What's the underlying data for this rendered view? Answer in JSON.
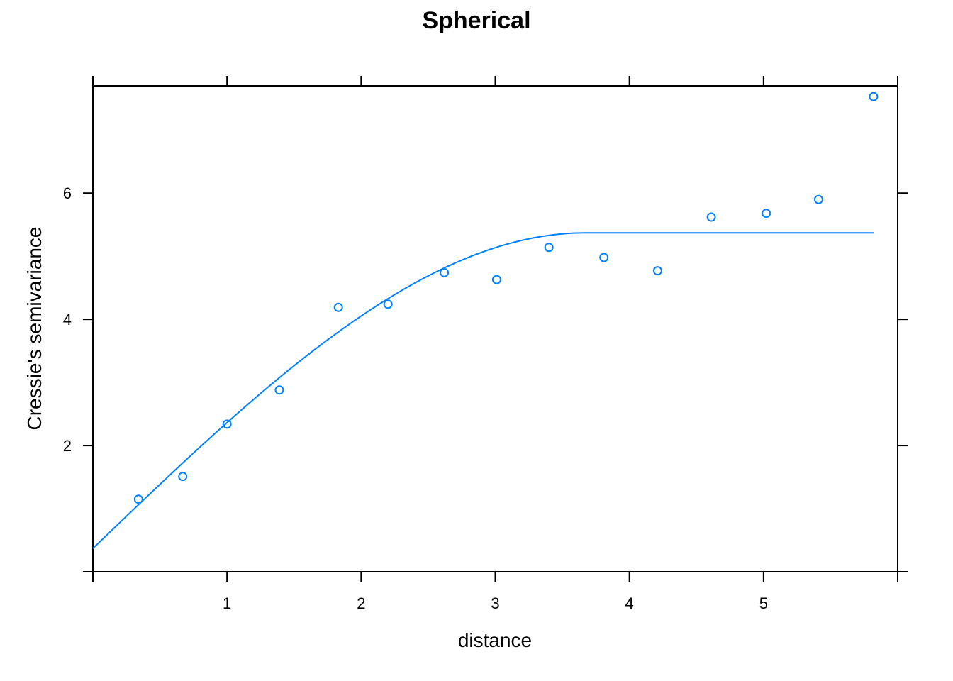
{
  "chart_data": {
    "type": "scatter",
    "title": "Spherical",
    "xlabel": "distance",
    "ylabel": "Cressie's semivariance",
    "xlim": [
      0,
      6
    ],
    "ylim": [
      0,
      7.7
    ],
    "x_ticks": [
      1,
      2,
      3,
      4,
      5
    ],
    "y_ticks": [
      2,
      4,
      6
    ],
    "colors": {
      "points": "#0080ff",
      "line": "#0080ff",
      "axis": "#000000"
    },
    "series": [
      {
        "kind": "points",
        "x": [
          0.34,
          0.67,
          1.0,
          1.39,
          1.83,
          2.2,
          2.62,
          3.01,
          3.4,
          3.81,
          4.21,
          4.61,
          5.02,
          5.41,
          5.82
        ],
        "y": [
          1.15,
          1.51,
          2.34,
          2.88,
          4.19,
          4.24,
          4.74,
          4.63,
          5.14,
          4.98,
          4.77,
          5.62,
          5.68,
          5.9,
          7.53
        ]
      },
      {
        "kind": "fitted-model",
        "model": "spherical",
        "nugget": 0.37,
        "sill": 5.37,
        "range": 3.67,
        "x_max": 5.82
      }
    ]
  }
}
